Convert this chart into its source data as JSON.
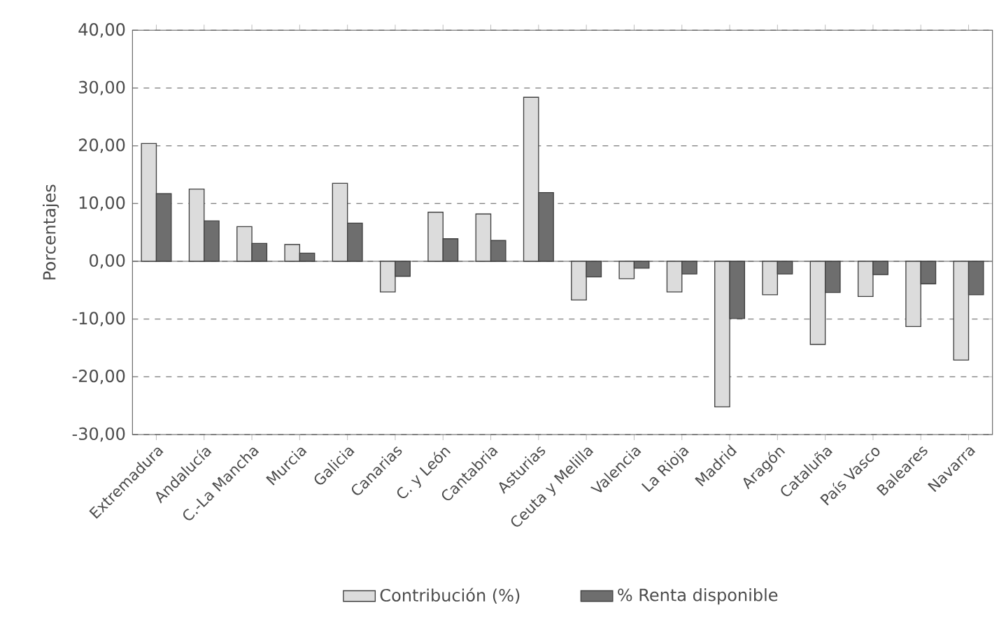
{
  "chart_data": {
    "type": "bar",
    "ylabel": "Porcentajes",
    "categories": [
      "Extremadura",
      "Andalucía",
      "C.-La Mancha",
      "Murcia",
      "Galicia",
      "Canarias",
      "C. y León",
      "Cantabria",
      "Asturias",
      "Ceuta y Melilla",
      "Valencia",
      "La Rioja",
      "Madrid",
      "Aragón",
      "Cataluña",
      "País Vasco",
      "Baleares",
      "Navarra"
    ],
    "series": [
      {
        "name": "Contribución (%)",
        "color": "#dcdcdc",
        "values": [
          20.4,
          12.5,
          6.0,
          2.9,
          13.5,
          -5.3,
          8.5,
          8.2,
          28.4,
          -6.7,
          -3.0,
          -5.3,
          -25.2,
          -5.8,
          -14.4,
          -6.1,
          -11.3,
          -17.1
        ]
      },
      {
        "name": "% Renta disponible",
        "color": "#6e6e6e",
        "values": [
          11.7,
          7.0,
          3.1,
          1.4,
          6.6,
          -2.6,
          3.9,
          3.6,
          11.9,
          -2.7,
          -1.2,
          -2.2,
          -9.9,
          -2.2,
          -5.4,
          -2.3,
          -3.9,
          -5.8
        ]
      }
    ],
    "ylim": [
      -30,
      40
    ],
    "yticks": [
      {
        "value": -30,
        "label": "-30,00"
      },
      {
        "value": -20,
        "label": "-20,00"
      },
      {
        "value": -10,
        "label": "-10,00"
      },
      {
        "value": 0,
        "label": "0,00"
      },
      {
        "value": 10,
        "label": "10,00"
      },
      {
        "value": 20,
        "label": "20,00"
      },
      {
        "value": 30,
        "label": "30,00"
      },
      {
        "value": 40,
        "label": "40,00"
      }
    ],
    "grid": "y",
    "legend": "bottom"
  }
}
